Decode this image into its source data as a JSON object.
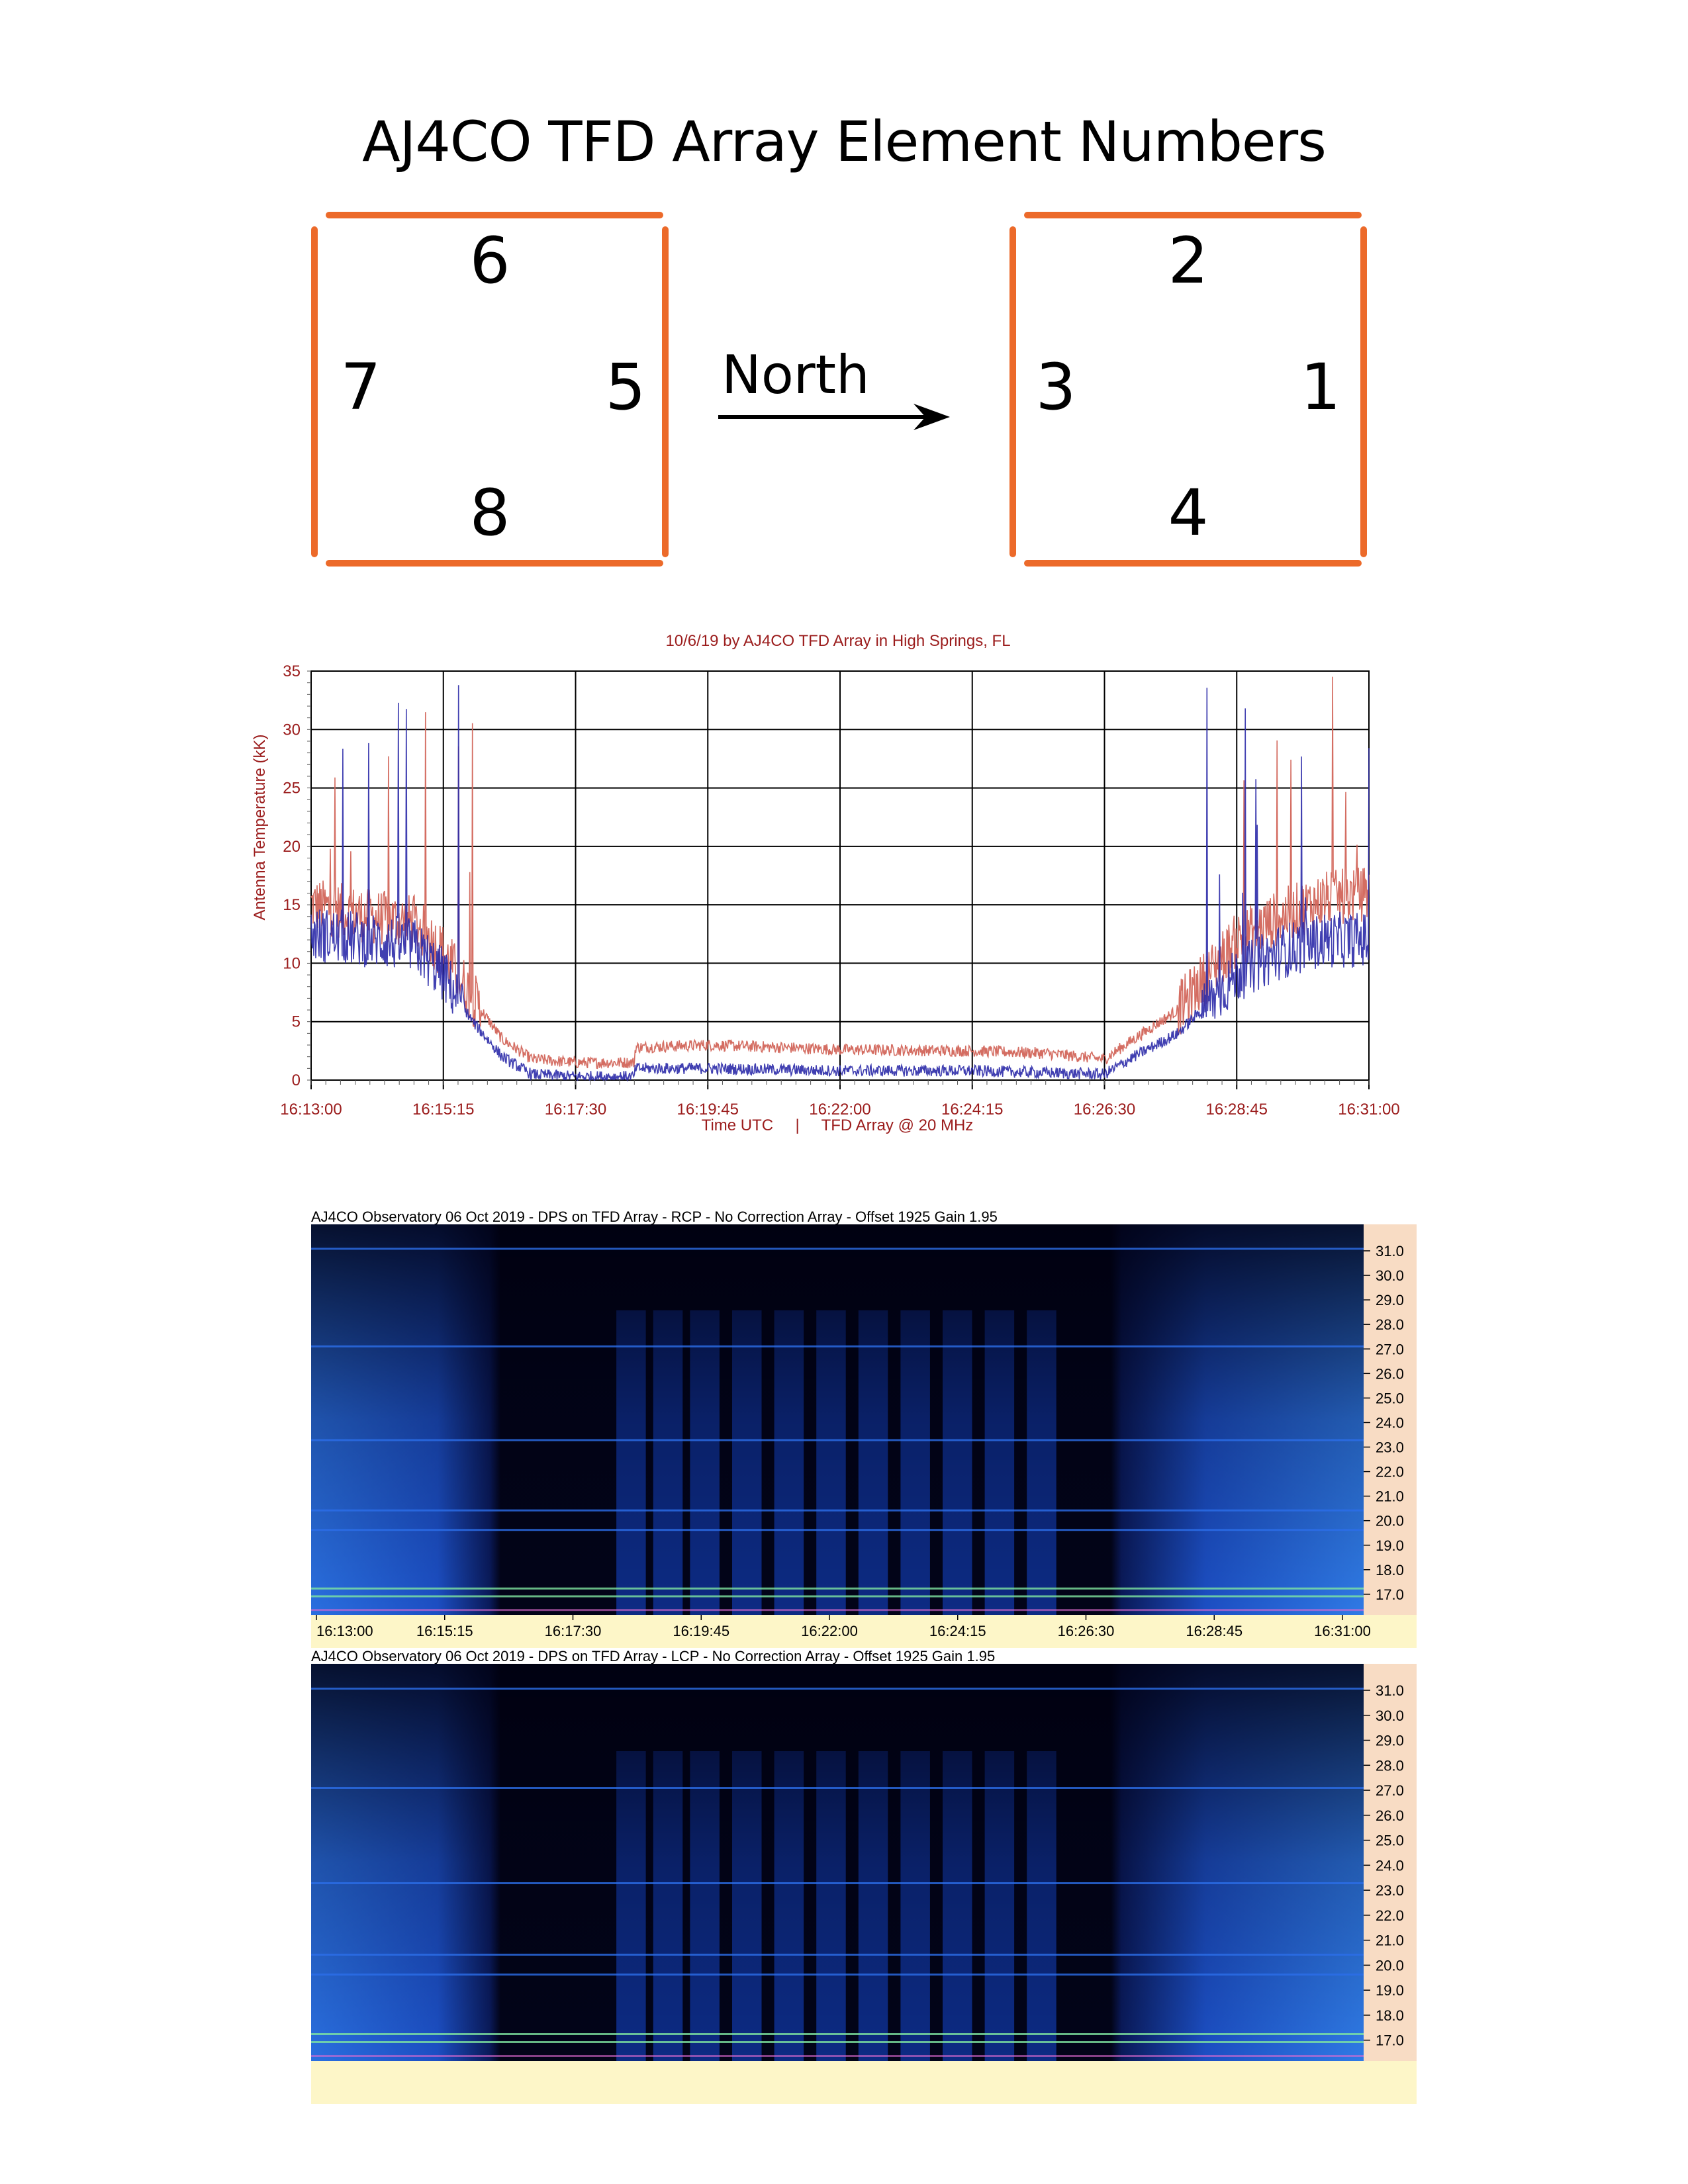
{
  "diagram": {
    "title": "AJ4CO TFD Array Element Numbers",
    "left_box": {
      "top": "6",
      "left": "7",
      "right": "5",
      "bottom": "8"
    },
    "right_box": {
      "top": "2",
      "left": "3",
      "right": "1",
      "bottom": "4"
    },
    "arrow_label": "North",
    "accent_color": "#ec6a2a"
  },
  "chart_data": {
    "type": "line",
    "title": "10/6/19  by  AJ4CO TFD Array  in  High Springs, FL",
    "xlabel": "Time UTC     |     TFD Array @ 20 MHz",
    "ylabel": "Antenna Temperature (kK)",
    "ylim": [
      0,
      35
    ],
    "y_ticks": [
      "0",
      "5",
      "10",
      "15",
      "20",
      "25",
      "30",
      "35"
    ],
    "x_ticks": [
      "16:13:00",
      "16:15:15",
      "16:17:30",
      "16:19:45",
      "16:22:00",
      "16:24:15",
      "16:26:30",
      "16:28:45",
      "16:31:00"
    ],
    "grid": true,
    "series": [
      {
        "color": "#d2655a",
        "points": [
          [
            "16:13:00",
            15
          ],
          [
            "16:14:00",
            14
          ],
          [
            "16:14:45",
            13.5
          ],
          [
            "16:15:15",
            11
          ],
          [
            "16:15:45",
            7
          ],
          [
            "16:16:15",
            3.5
          ],
          [
            "16:16:45",
            1.8
          ],
          [
            "16:17:30",
            1.5
          ],
          [
            "16:18:30",
            1.5
          ],
          [
            "16:18:31",
            2.8
          ],
          [
            "16:19:45",
            3
          ],
          [
            "16:21:00",
            2.8
          ],
          [
            "16:22:00",
            2.6
          ],
          [
            "16:24:15",
            2.5
          ],
          [
            "16:25:30",
            2.3
          ],
          [
            "16:26:30",
            1.8
          ],
          [
            "16:27:00",
            3.5
          ],
          [
            "16:27:45",
            6
          ],
          [
            "16:28:15",
            9
          ],
          [
            "16:28:45",
            12
          ],
          [
            "16:29:30",
            14
          ],
          [
            "16:30:15",
            15.5
          ],
          [
            "16:31:00",
            16
          ]
        ]
      },
      {
        "color": "#2b2aa8",
        "points": [
          [
            "16:13:00",
            12.5
          ],
          [
            "16:14:00",
            12
          ],
          [
            "16:14:45",
            11.5
          ],
          [
            "16:15:15",
            9
          ],
          [
            "16:15:45",
            5
          ],
          [
            "16:16:15",
            2
          ],
          [
            "16:16:45",
            0.5
          ],
          [
            "16:17:30",
            0.3
          ],
          [
            "16:18:30",
            0.3
          ],
          [
            "16:18:31",
            1
          ],
          [
            "16:19:45",
            1
          ],
          [
            "16:22:00",
            0.8
          ],
          [
            "16:24:15",
            0.8
          ],
          [
            "16:26:30",
            0.5
          ],
          [
            "16:27:00",
            2
          ],
          [
            "16:27:45",
            4
          ],
          [
            "16:28:15",
            6.5
          ],
          [
            "16:28:45",
            9
          ],
          [
            "16:29:30",
            11
          ],
          [
            "16:30:15",
            12
          ],
          [
            "16:31:00",
            12
          ]
        ]
      }
    ]
  },
  "waterfalls": [
    {
      "header": "AJ4CO Observatory 06 Oct 2019 - DPS on TFD Array  - RCP  -  No Correction Array  -  Offset 1925  Gain 1.95",
      "freq_labels": [
        "31.0",
        "30.0",
        "29.0",
        "28.0",
        "27.0",
        "26.0",
        "25.0",
        "24.0",
        "23.0",
        "22.0",
        "21.0",
        "20.0",
        "19.0",
        "18.0",
        "17.0"
      ],
      "time_labels": [
        "16:13:00",
        "16:15:15",
        "16:17:30",
        "16:19:45",
        "16:22:00",
        "16:24:15",
        "16:26:30",
        "16:28:45",
        "16:31:00"
      ]
    },
    {
      "header": "AJ4CO Observatory 06 Oct 2019 - DPS on TFD Array  - LCP  -  No Correction Array  -  Offset 1925  Gain 1.95",
      "freq_labels": [
        "31.0",
        "30.0",
        "29.0",
        "28.0",
        "27.0",
        "26.0",
        "25.0",
        "24.0",
        "23.0",
        "22.0",
        "21.0",
        "20.0",
        "19.0",
        "18.0",
        "17.0"
      ]
    }
  ]
}
